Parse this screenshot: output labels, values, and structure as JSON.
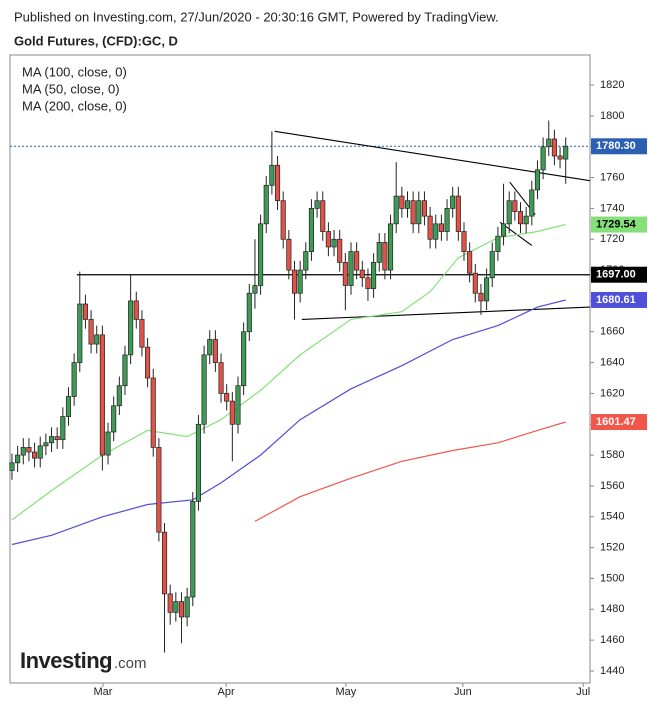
{
  "header": {
    "published": "Published on Investing.com, 27/Jun/2020 - 20:30:16 GMT, Powered by TradingView.",
    "logo": "Investing",
    "logo_suffix": ".com"
  },
  "chart_data": {
    "type": "candlestick",
    "title": "Gold Futures, (CFD):GC, D",
    "xlim": [
      -0.35,
      102.3
    ],
    "ylim": [
      1432.2,
      1839.5
    ],
    "yticks": [
      1440,
      1460,
      1480,
      1500,
      1520,
      1540,
      1560,
      1580,
      1600,
      1620,
      1640,
      1660,
      1680,
      1700,
      1720,
      1740,
      1760,
      1780,
      1800,
      1820
    ],
    "xticks": [
      {
        "value": 16.1,
        "label": "Mar"
      },
      {
        "value": 37.9,
        "label": "Apr"
      },
      {
        "value": 59.1,
        "label": "May"
      },
      {
        "value": 79.8,
        "label": "Jun"
      },
      {
        "value": 101.1,
        "label": "Jul"
      }
    ],
    "up_color": "#3e9a55",
    "down_color": "#e05448",
    "open": [
      1570,
      1575,
      1580,
      1585,
      1582,
      1578,
      1586,
      1588,
      1592,
      1590,
      1605,
      1618,
      1640,
      1678,
      1668,
      1652,
      1658,
      1580,
      1595,
      1612,
      1625,
      1645,
      1680,
      1668,
      1650,
      1630,
      1585,
      1530,
      1490,
      1478,
      1485,
      1475,
      1488,
      1550,
      1600,
      1645,
      1655,
      1640,
      1620,
      1615,
      1600,
      1625,
      1660,
      1685,
      1690,
      1730,
      1755,
      1768,
      1745,
      1720,
      1700,
      1685,
      1700,
      1712,
      1740,
      1745,
      1725,
      1715,
      1720,
      1705,
      1690,
      1712,
      1700,
      1695,
      1688,
      1705,
      1718,
      1700,
      1730,
      1748,
      1740,
      1745,
      1730,
      1745,
      1735,
      1720,
      1730,
      1725,
      1740,
      1748,
      1725,
      1712,
      1698,
      1685,
      1680,
      1695,
      1712,
      1722,
      1730,
      1745,
      1738,
      1730,
      1735,
      1752,
      1765,
      1780,
      1785,
      1774,
      1772
    ],
    "high": [
      1581,
      1586,
      1591,
      1591,
      1588,
      1592,
      1594,
      1598,
      1598,
      1611,
      1624,
      1646,
      1699,
      1684,
      1674,
      1664,
      1664,
      1601,
      1618,
      1631,
      1651,
      1697,
      1686,
      1674,
      1656,
      1636,
      1591,
      1536,
      1496,
      1491,
      1491,
      1494,
      1556,
      1606,
      1651,
      1661,
      1661,
      1646,
      1626,
      1621,
      1631,
      1666,
      1691,
      1720,
      1736,
      1761,
      1790,
      1774,
      1751,
      1726,
      1706,
      1706,
      1718,
      1746,
      1751,
      1751,
      1731,
      1726,
      1726,
      1711,
      1718,
      1718,
      1706,
      1701,
      1711,
      1724,
      1724,
      1736,
      1770,
      1754,
      1751,
      1751,
      1751,
      1751,
      1741,
      1736,
      1736,
      1746,
      1754,
      1754,
      1731,
      1718,
      1704,
      1691,
      1701,
      1718,
      1728,
      1756,
      1751,
      1751,
      1744,
      1741,
      1758,
      1771,
      1786,
      1797,
      1791,
      1780,
      1786
    ],
    "low": [
      1564,
      1569,
      1574,
      1576,
      1572,
      1572,
      1580,
      1582,
      1584,
      1584,
      1599,
      1612,
      1634,
      1662,
      1646,
      1646,
      1570,
      1574,
      1589,
      1606,
      1619,
      1639,
      1662,
      1644,
      1624,
      1579,
      1524,
      1452,
      1470,
      1472,
      1458,
      1469,
      1482,
      1544,
      1594,
      1639,
      1634,
      1614,
      1609,
      1576,
      1594,
      1619,
      1654,
      1675,
      1684,
      1724,
      1749,
      1739,
      1714,
      1694,
      1668,
      1679,
      1694,
      1706,
      1734,
      1719,
      1709,
      1709,
      1699,
      1674,
      1684,
      1694,
      1689,
      1680,
      1682,
      1699,
      1694,
      1694,
      1724,
      1734,
      1734,
      1724,
      1724,
      1729,
      1714,
      1714,
      1719,
      1719,
      1734,
      1719,
      1706,
      1692,
      1679,
      1671,
      1674,
      1689,
      1706,
      1716,
      1724,
      1732,
      1724,
      1724,
      1729,
      1746,
      1759,
      1774,
      1768,
      1766,
      1756
    ],
    "close": [
      1575,
      1580,
      1585,
      1582,
      1578,
      1586,
      1588,
      1592,
      1590,
      1605,
      1618,
      1640,
      1678,
      1668,
      1652,
      1658,
      1580,
      1595,
      1612,
      1625,
      1645,
      1680,
      1668,
      1650,
      1630,
      1585,
      1530,
      1490,
      1478,
      1485,
      1475,
      1488,
      1550,
      1600,
      1645,
      1655,
      1640,
      1620,
      1615,
      1600,
      1625,
      1660,
      1685,
      1690,
      1730,
      1755,
      1768,
      1745,
      1720,
      1700,
      1685,
      1700,
      1712,
      1740,
      1745,
      1725,
      1715,
      1720,
      1705,
      1690,
      1712,
      1700,
      1695,
      1688,
      1705,
      1718,
      1700,
      1730,
      1748,
      1740,
      1745,
      1730,
      1745,
      1735,
      1720,
      1730,
      1725,
      1740,
      1748,
      1725,
      1712,
      1698,
      1685,
      1680,
      1695,
      1712,
      1722,
      1730,
      1745,
      1738,
      1730,
      1735,
      1752,
      1765,
      1780,
      1785,
      1774,
      1772,
      1780.3
    ],
    "price_line": {
      "value": 1780.3,
      "label": "1780.30",
      "color": "#2a5fb3"
    },
    "series": [
      {
        "name": "MA (100, close, 0)",
        "color": "#4f4fd9",
        "x": [
          0,
          7,
          16,
          24,
          32,
          37,
          44,
          51,
          60,
          69,
          78,
          86,
          93,
          98
        ],
        "values": [
          1522,
          1528,
          1540,
          1548,
          1551,
          1562,
          1580,
          1603,
          1623,
          1638,
          1655,
          1664,
          1676,
          1680.61
        ]
      },
      {
        "name": "MA (50, close, 0)",
        "color": "#86e07a",
        "x": [
          0,
          7,
          16,
          24,
          31,
          37,
          44,
          51,
          60,
          69,
          74,
          79,
          86,
          93,
          98
        ],
        "values": [
          1538,
          1557,
          1580,
          1596,
          1592,
          1603,
          1622,
          1645,
          1668,
          1673,
          1686,
          1708,
          1721,
          1725,
          1729.54
        ]
      },
      {
        "name": "MA (200, close, 0)",
        "color": "#f0574a",
        "x": [
          43,
          51,
          60,
          69,
          78,
          86,
          93,
          98
        ],
        "values": [
          1537,
          1553,
          1565,
          1576,
          1583,
          1588,
          1596,
          1601.47
        ]
      }
    ],
    "level_line": {
      "value": 1697,
      "label": "1697.00",
      "x": [
        11.5,
        102.3
      ]
    },
    "trendlines": [
      {
        "x": [
          46.5,
          102.3
        ],
        "values": [
          1790,
          1758
        ]
      },
      {
        "x": [
          51.3,
          102.3
        ],
        "values": [
          1668,
          1676
        ]
      },
      {
        "x": [
          88.1,
          92.6
        ],
        "values": [
          1757,
          1736
        ]
      },
      {
        "x": [
          86.4,
          92
        ],
        "values": [
          1731,
          1716
        ]
      }
    ]
  }
}
